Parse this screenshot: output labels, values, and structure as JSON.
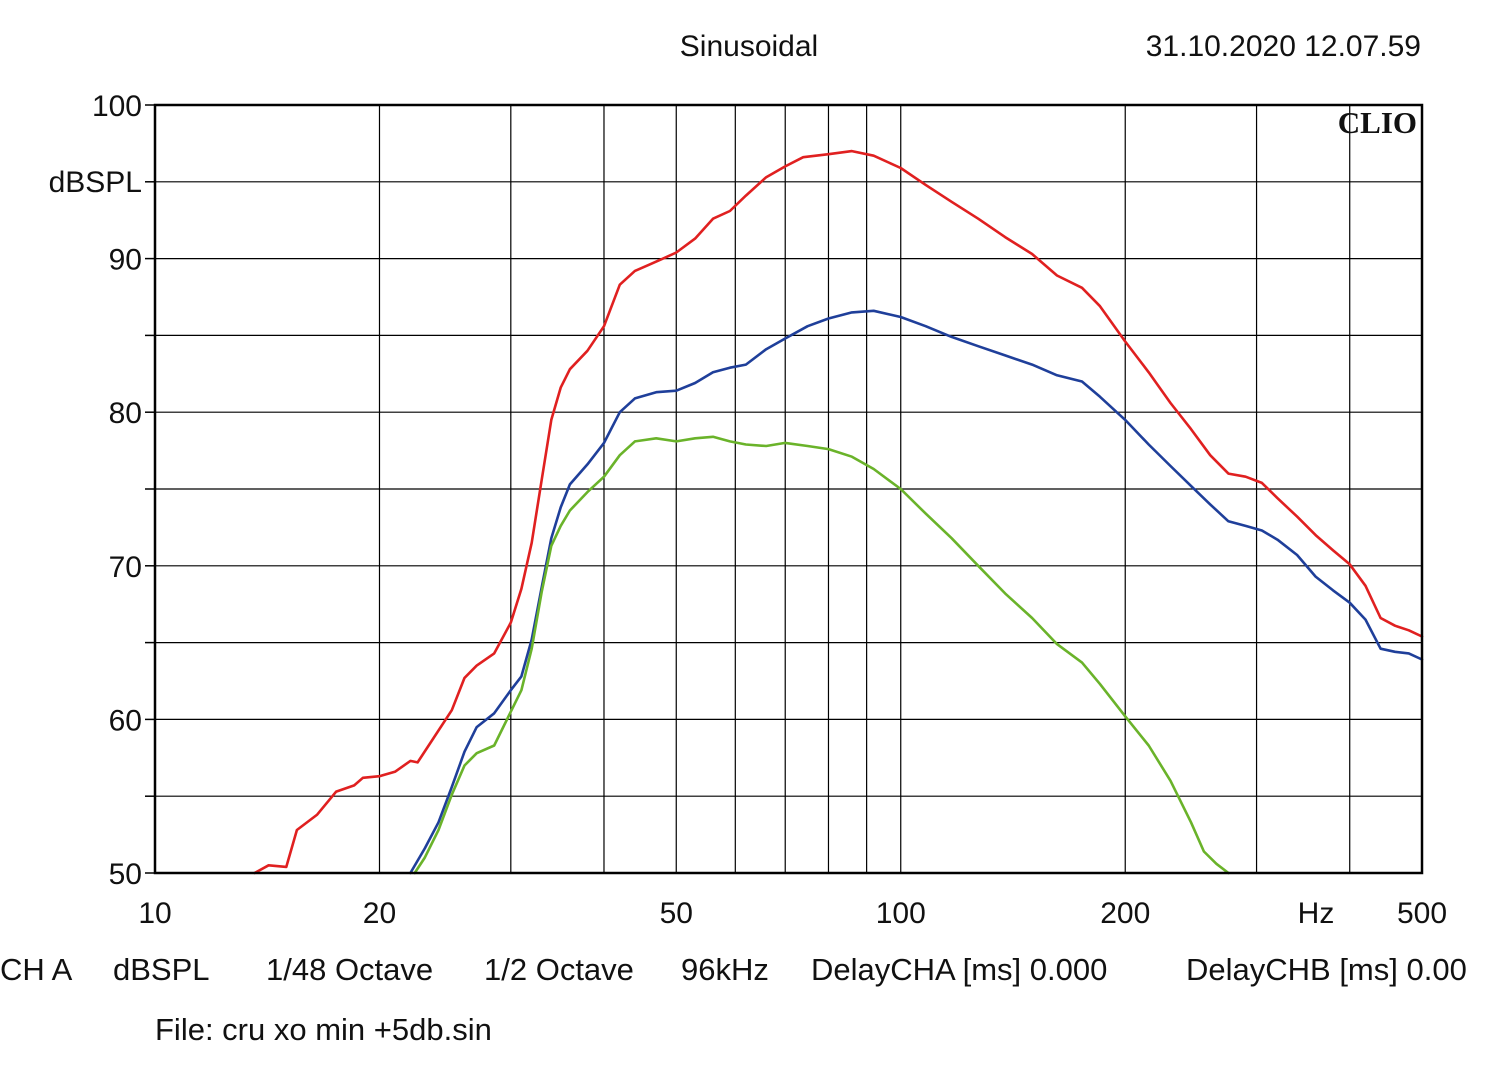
{
  "header": {
    "mode": "Sinusoidal",
    "datetime": "31.10.2020 12.07.59"
  },
  "brand": "CLIO",
  "footer": {
    "channel": "CH A",
    "unit": "dBSPL",
    "resolution": "1/48 Octave",
    "smoothing": "1/2 Octave",
    "sample_rate": "96kHz",
    "delay_a": "DelayCHA [ms] 0.000",
    "delay_b": "DelayCHB [ms] 0.00",
    "file": "File: cru xo min +5db.sin"
  },
  "chart_data": {
    "type": "line",
    "x_scale": "log",
    "xlim": [
      10,
      500
    ],
    "ylim": [
      50,
      100
    ],
    "grid": true,
    "ylabel": "dBSPL",
    "xlabel": "Hz",
    "x_tick_labels": [
      {
        "value": 10,
        "label": "10"
      },
      {
        "value": 20,
        "label": "20"
      },
      {
        "value": 50,
        "label": "50"
      },
      {
        "value": 100,
        "label": "100"
      },
      {
        "value": 200,
        "label": "200"
      },
      {
        "value": 500,
        "label": "500"
      }
    ],
    "y_tick_labels": [
      {
        "value": 100,
        "label": "100"
      },
      {
        "value": 90,
        "label": "90"
      },
      {
        "value": 80,
        "label": "80"
      },
      {
        "value": 70,
        "label": "70"
      },
      {
        "value": 60,
        "label": "60"
      },
      {
        "value": 50,
        "label": "50"
      }
    ],
    "series": [
      {
        "color": "#e02020",
        "points": [
          [
            13.6,
            50.0
          ],
          [
            14.2,
            50.5
          ],
          [
            15.0,
            50.4
          ],
          [
            15.5,
            52.8
          ],
          [
            16.5,
            53.8
          ],
          [
            17.5,
            55.3
          ],
          [
            18.5,
            55.7
          ],
          [
            19.0,
            56.2
          ],
          [
            20.0,
            56.3
          ],
          [
            21.0,
            56.6
          ],
          [
            22.0,
            57.3
          ],
          [
            22.5,
            57.2
          ],
          [
            23.5,
            58.6
          ],
          [
            25.0,
            60.6
          ],
          [
            26.0,
            62.7
          ],
          [
            27.0,
            63.5
          ],
          [
            28.5,
            64.3
          ],
          [
            30.0,
            66.3
          ],
          [
            31.0,
            68.5
          ],
          [
            32.0,
            71.5
          ],
          [
            33.0,
            75.6
          ],
          [
            34.0,
            79.5
          ],
          [
            35.0,
            81.6
          ],
          [
            36.0,
            82.8
          ],
          [
            38.0,
            84.0
          ],
          [
            40.0,
            85.6
          ],
          [
            42.0,
            88.3
          ],
          [
            44.0,
            89.2
          ],
          [
            46.0,
            89.6
          ],
          [
            48.0,
            90.0
          ],
          [
            50.0,
            90.4
          ],
          [
            53.0,
            91.3
          ],
          [
            56.0,
            92.6
          ],
          [
            59.0,
            93.1
          ],
          [
            62.0,
            94.1
          ],
          [
            66.0,
            95.3
          ],
          [
            70.0,
            96.0
          ],
          [
            74.0,
            96.6
          ],
          [
            80.0,
            96.8
          ],
          [
            86.0,
            97.0
          ],
          [
            92.0,
            96.7
          ],
          [
            100.0,
            95.9
          ],
          [
            108.0,
            94.8
          ],
          [
            117.0,
            93.7
          ],
          [
            127.0,
            92.6
          ],
          [
            138.0,
            91.4
          ],
          [
            150.0,
            90.3
          ],
          [
            162.0,
            88.9
          ],
          [
            175.0,
            88.1
          ],
          [
            185.0,
            86.9
          ],
          [
            200.0,
            84.6
          ],
          [
            215.0,
            82.6
          ],
          [
            230.0,
            80.6
          ],
          [
            245.0,
            78.9
          ],
          [
            260.0,
            77.2
          ],
          [
            275.0,
            76.0
          ],
          [
            290.0,
            75.8
          ],
          [
            305.0,
            75.4
          ],
          [
            320.0,
            74.4
          ],
          [
            340.0,
            73.2
          ],
          [
            360.0,
            72.0
          ],
          [
            380.0,
            71.0
          ],
          [
            400.0,
            70.1
          ],
          [
            420.0,
            68.7
          ],
          [
            440.0,
            66.6
          ],
          [
            460.0,
            66.1
          ],
          [
            480.0,
            65.8
          ],
          [
            500.0,
            65.4
          ]
        ]
      },
      {
        "color": "#1f3f9a",
        "points": [
          [
            22.0,
            50.0
          ],
          [
            23.0,
            51.6
          ],
          [
            24.0,
            53.3
          ],
          [
            25.0,
            55.6
          ],
          [
            26.0,
            57.9
          ],
          [
            27.0,
            59.5
          ],
          [
            28.5,
            60.4
          ],
          [
            30.0,
            61.9
          ],
          [
            31.0,
            62.8
          ],
          [
            32.0,
            65.2
          ],
          [
            33.0,
            68.6
          ],
          [
            34.0,
            71.8
          ],
          [
            35.0,
            73.8
          ],
          [
            36.0,
            75.3
          ],
          [
            38.0,
            76.6
          ],
          [
            40.0,
            78.0
          ],
          [
            42.0,
            80.0
          ],
          [
            44.0,
            80.9
          ],
          [
            47.0,
            81.3
          ],
          [
            50.0,
            81.4
          ],
          [
            53.0,
            81.9
          ],
          [
            56.0,
            82.6
          ],
          [
            59.0,
            82.9
          ],
          [
            62.0,
            83.1
          ],
          [
            66.0,
            84.1
          ],
          [
            70.0,
            84.8
          ],
          [
            75.0,
            85.6
          ],
          [
            80.0,
            86.1
          ],
          [
            86.0,
            86.5
          ],
          [
            92.0,
            86.6
          ],
          [
            100.0,
            86.2
          ],
          [
            108.0,
            85.6
          ],
          [
            117.0,
            84.9
          ],
          [
            127.0,
            84.3
          ],
          [
            138.0,
            83.7
          ],
          [
            150.0,
            83.1
          ],
          [
            162.0,
            82.4
          ],
          [
            175.0,
            82.0
          ],
          [
            185.0,
            81.0
          ],
          [
            200.0,
            79.5
          ],
          [
            215.0,
            77.9
          ],
          [
            230.0,
            76.5
          ],
          [
            245.0,
            75.2
          ],
          [
            260.0,
            74.0
          ],
          [
            275.0,
            72.9
          ],
          [
            290.0,
            72.6
          ],
          [
            305.0,
            72.3
          ],
          [
            320.0,
            71.7
          ],
          [
            340.0,
            70.7
          ],
          [
            360.0,
            69.3
          ],
          [
            380.0,
            68.4
          ],
          [
            400.0,
            67.6
          ],
          [
            420.0,
            66.5
          ],
          [
            440.0,
            64.6
          ],
          [
            460.0,
            64.4
          ],
          [
            480.0,
            64.3
          ],
          [
            500.0,
            63.9
          ]
        ]
      },
      {
        "color": "#6ab32a",
        "points": [
          [
            22.3,
            50.0
          ],
          [
            23.0,
            51.0
          ],
          [
            24.0,
            52.8
          ],
          [
            25.0,
            55.1
          ],
          [
            26.0,
            57.0
          ],
          [
            27.0,
            57.8
          ],
          [
            28.5,
            58.3
          ],
          [
            30.0,
            60.5
          ],
          [
            31.0,
            61.9
          ],
          [
            32.0,
            64.6
          ],
          [
            33.0,
            68.3
          ],
          [
            34.0,
            71.3
          ],
          [
            35.0,
            72.6
          ],
          [
            36.0,
            73.6
          ],
          [
            38.0,
            74.8
          ],
          [
            40.0,
            75.8
          ],
          [
            42.0,
            77.2
          ],
          [
            44.0,
            78.1
          ],
          [
            47.0,
            78.3
          ],
          [
            50.0,
            78.1
          ],
          [
            53.0,
            78.3
          ],
          [
            56.0,
            78.4
          ],
          [
            59.0,
            78.1
          ],
          [
            62.0,
            77.9
          ],
          [
            66.0,
            77.8
          ],
          [
            70.0,
            78.0
          ],
          [
            75.0,
            77.8
          ],
          [
            80.0,
            77.6
          ],
          [
            86.0,
            77.1
          ],
          [
            92.0,
            76.3
          ],
          [
            100.0,
            75.0
          ],
          [
            108.0,
            73.4
          ],
          [
            117.0,
            71.8
          ],
          [
            127.0,
            70.0
          ],
          [
            138.0,
            68.2
          ],
          [
            150.0,
            66.6
          ],
          [
            162.0,
            64.9
          ],
          [
            175.0,
            63.7
          ],
          [
            185.0,
            62.3
          ],
          [
            200.0,
            60.2
          ],
          [
            215.0,
            58.3
          ],
          [
            230.0,
            56.0
          ],
          [
            245.0,
            53.3
          ],
          [
            255.0,
            51.4
          ],
          [
            265.0,
            50.6
          ],
          [
            275.0,
            50.0
          ]
        ]
      }
    ]
  }
}
